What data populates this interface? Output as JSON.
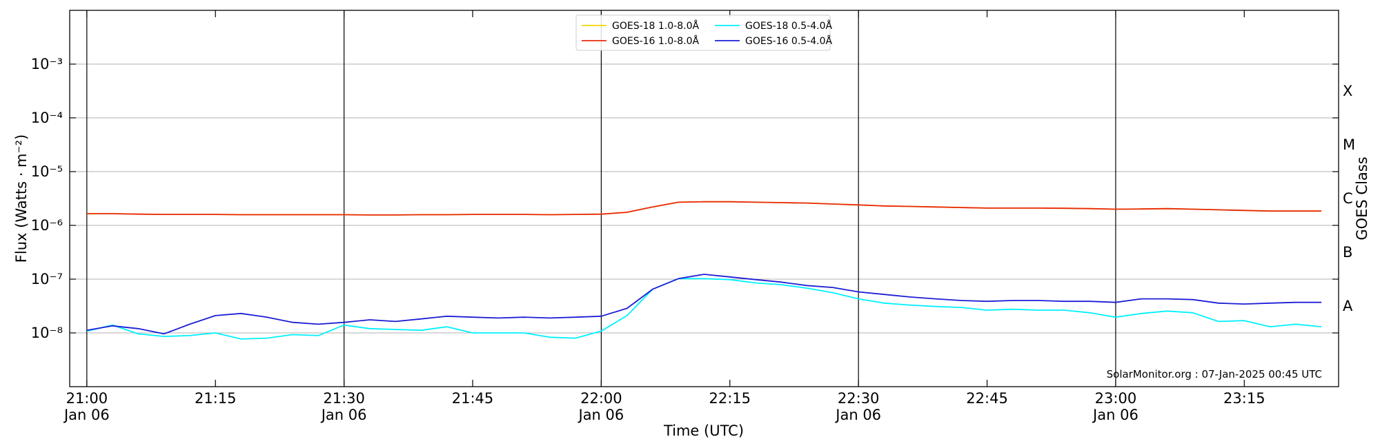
{
  "chart_data": {
    "type": "line",
    "xlabel": "Time (UTC)",
    "ylabel": "Flux (Watts · m⁻²)",
    "y2label": "GOES Class",
    "annotation": "SolarMonitor.org : 07-Jan-2025 00:45 UTC",
    "log_y": true,
    "grid": true,
    "legend": "upper center",
    "xlim": [
      "20:58",
      "23:26"
    ],
    "ylim": [
      1e-09,
      0.01
    ],
    "xticks": [
      {
        "value": "21:00",
        "label": "21:00",
        "date": "Jan 06"
      },
      {
        "value": "21:15",
        "label": "21:15"
      },
      {
        "value": "21:30",
        "label": "21:30",
        "date": "Jan 06"
      },
      {
        "value": "21:45",
        "label": "21:45"
      },
      {
        "value": "22:00",
        "label": "22:00",
        "date": "Jan 06"
      },
      {
        "value": "22:15",
        "label": "22:15"
      },
      {
        "value": "22:30",
        "label": "22:30",
        "date": "Jan 06"
      },
      {
        "value": "22:45",
        "label": "22:45"
      },
      {
        "value": "23:00",
        "label": "23:00",
        "date": "Jan 06"
      },
      {
        "value": "23:15",
        "label": "23:15"
      }
    ],
    "yticks": [
      {
        "value": 1e-08,
        "label": "10⁻⁸"
      },
      {
        "value": 1e-07,
        "label": "10⁻⁷"
      },
      {
        "value": 1e-06,
        "label": "10⁻⁶"
      },
      {
        "value": 1e-05,
        "label": "10⁻⁵"
      },
      {
        "value": 0.0001,
        "label": "10⁻⁴"
      },
      {
        "value": 0.001,
        "label": "10⁻³"
      }
    ],
    "y2_labels": [
      {
        "value": 3.16e-08,
        "label": "A"
      },
      {
        "value": 3.16e-07,
        "label": "B"
      },
      {
        "value": 3.16e-06,
        "label": "C"
      },
      {
        "value": 3.16e-05,
        "label": "M"
      },
      {
        "value": 0.000316,
        "label": "X"
      }
    ],
    "x": [
      "21:00",
      "21:03",
      "21:06",
      "21:09",
      "21:12",
      "21:15",
      "21:18",
      "21:21",
      "21:24",
      "21:27",
      "21:30",
      "21:33",
      "21:36",
      "21:39",
      "21:42",
      "21:45",
      "21:48",
      "21:51",
      "21:54",
      "21:57",
      "22:00",
      "22:03",
      "22:06",
      "22:09",
      "22:12",
      "22:15",
      "22:18",
      "22:21",
      "22:24",
      "22:27",
      "22:30",
      "22:33",
      "22:36",
      "22:39",
      "22:42",
      "22:45",
      "22:48",
      "22:51",
      "22:54",
      "22:57",
      "23:00",
      "23:03",
      "23:06",
      "23:09",
      "23:12",
      "23:15",
      "23:18",
      "23:21",
      "23:24"
    ],
    "series": [
      {
        "name": "GOES-18 1.0-8.0Å",
        "color": "#f5d800",
        "values": [
          1.65e-06,
          1.65e-06,
          1.62e-06,
          1.6e-06,
          1.6e-06,
          1.6e-06,
          1.58e-06,
          1.58e-06,
          1.58e-06,
          1.58e-06,
          1.58e-06,
          1.56e-06,
          1.56e-06,
          1.58e-06,
          1.58e-06,
          1.6e-06,
          1.6e-06,
          1.6e-06,
          1.58e-06,
          1.6e-06,
          1.62e-06,
          1.75e-06,
          2.2e-06,
          2.7e-06,
          2.75e-06,
          2.75e-06,
          2.7e-06,
          2.65e-06,
          2.6e-06,
          2.5e-06,
          2.4e-06,
          2.3e-06,
          2.25e-06,
          2.2e-06,
          2.15e-06,
          2.1e-06,
          2.1e-06,
          2.1e-06,
          2.08e-06,
          2.05e-06,
          2e-06,
          2.02e-06,
          2.05e-06,
          2e-06,
          1.95e-06,
          1.9e-06,
          1.85e-06,
          1.85e-06,
          1.85e-06
        ]
      },
      {
        "name": "GOES-16 1.0-8.0Å",
        "color": "#e8290b",
        "values": [
          1.65e-06,
          1.65e-06,
          1.62e-06,
          1.6e-06,
          1.6e-06,
          1.6e-06,
          1.58e-06,
          1.58e-06,
          1.58e-06,
          1.58e-06,
          1.58e-06,
          1.56e-06,
          1.56e-06,
          1.58e-06,
          1.58e-06,
          1.6e-06,
          1.6e-06,
          1.6e-06,
          1.58e-06,
          1.6e-06,
          1.62e-06,
          1.75e-06,
          2.2e-06,
          2.7e-06,
          2.75e-06,
          2.75e-06,
          2.7e-06,
          2.65e-06,
          2.6e-06,
          2.5e-06,
          2.4e-06,
          2.3e-06,
          2.25e-06,
          2.2e-06,
          2.15e-06,
          2.1e-06,
          2.1e-06,
          2.1e-06,
          2.08e-06,
          2.05e-06,
          2e-06,
          2.02e-06,
          2.05e-06,
          2e-06,
          1.95e-06,
          1.9e-06,
          1.85e-06,
          1.85e-06,
          1.85e-06
        ]
      },
      {
        "name": "GOES-18 0.5-4.0Å",
        "color": "#00f0ff",
        "values": [
          1.08e-08,
          1.4e-08,
          9.6e-09,
          8.6e-09,
          8.9e-09,
          1e-08,
          7.7e-09,
          8e-09,
          9.3e-09,
          8.9e-09,
          1.4e-08,
          1.2e-08,
          1.16e-08,
          1.12e-08,
          1.3e-08,
          1e-08,
          1e-08,
          1e-08,
          8.3e-09,
          8e-09,
          1.08e-08,
          2.1e-08,
          6.5e-08,
          1.02e-07,
          1.02e-07,
          9.8e-08,
          8.5e-08,
          7.9e-08,
          6.8e-08,
          5.6e-08,
          4.3e-08,
          3.58e-08,
          3.3e-08,
          3.1e-08,
          2.97e-08,
          2.65e-08,
          2.75e-08,
          2.65e-08,
          2.65e-08,
          2.37e-08,
          1.96e-08,
          2.3e-08,
          2.55e-08,
          2.37e-08,
          1.63e-08,
          1.69e-08,
          1.3e-08,
          1.45e-08,
          1.3e-08
        ]
      },
      {
        "name": "GOES-16 0.5-4.0Å",
        "color": "#1c1cd6",
        "values": [
          1.12e-08,
          1.35e-08,
          1.2e-08,
          9.6e-09,
          1.45e-08,
          2.1e-08,
          2.3e-08,
          1.96e-08,
          1.57e-08,
          1.45e-08,
          1.57e-08,
          1.75e-08,
          1.63e-08,
          1.82e-08,
          2.04e-08,
          1.96e-08,
          1.89e-08,
          1.96e-08,
          1.89e-08,
          1.96e-08,
          2.04e-08,
          2.86e-08,
          6.5e-08,
          1.02e-07,
          1.23e-07,
          1.1e-07,
          9.8e-08,
          8.8e-08,
          7.6e-08,
          7e-08,
          5.8e-08,
          5.2e-08,
          4.65e-08,
          4.3e-08,
          4e-08,
          3.86e-08,
          4e-08,
          4e-08,
          3.86e-08,
          3.86e-08,
          3.7e-08,
          4.3e-08,
          4.3e-08,
          4.16e-08,
          3.58e-08,
          3.45e-08,
          3.58e-08,
          3.7e-08,
          3.7e-08
        ]
      }
    ]
  }
}
